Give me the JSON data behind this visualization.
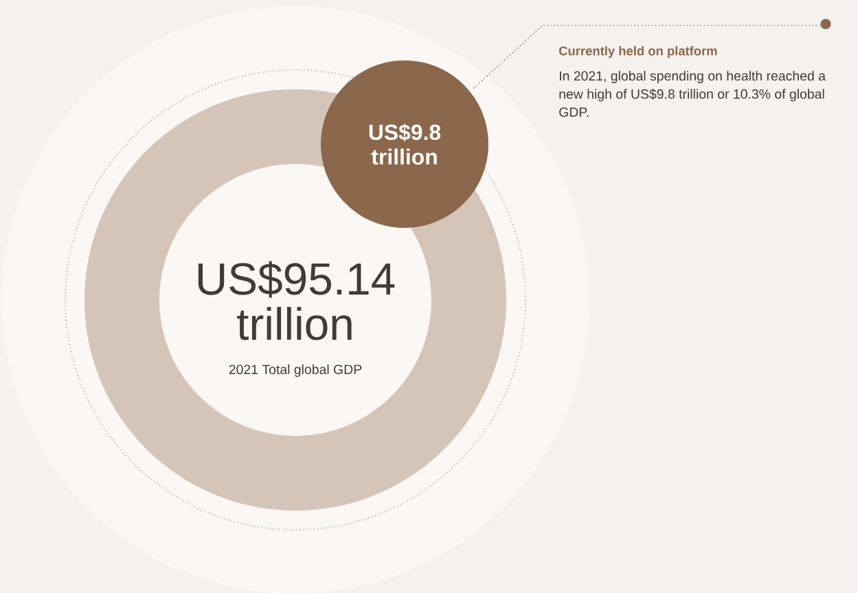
{
  "chart_data": {
    "type": "other",
    "categories": [
      "2021 Total global GDP",
      "Currently held on platform"
    ],
    "values": [
      95.14,
      9.8
    ],
    "value_labels": [
      "US$95.14 trillion",
      "US$9.8 trillion"
    ],
    "colors": [
      "#d5c5b8",
      "#8b674b"
    ],
    "annotations": [
      "In 2021, global spending on health reached a new high of US$9.8 trillion or 10.3% of global GDP."
    ]
  }
}
